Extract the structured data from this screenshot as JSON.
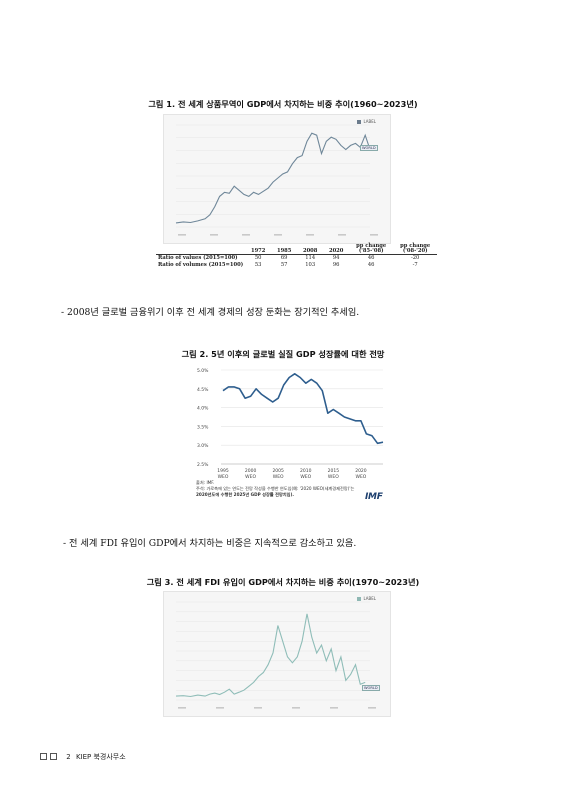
{
  "figure1": {
    "title": "그림 1. 전 세계 상품무역이 GDP에서 차지하는 비중 추이(1960~2023년)",
    "legend_label": "LABEL",
    "badge_label": "WORLD",
    "table": {
      "headers": [
        "",
        "1972",
        "1985",
        "2008",
        "2020",
        "pp change\n('85-'08)",
        "pp change\n('08-'20)"
      ],
      "header_cols": [
        "1972",
        "1985",
        "2008",
        "2020"
      ],
      "pp1_l1": "pp change",
      "pp1_l2": "('85-'08)",
      "pp2_l1": "pp change",
      "pp2_l2": "('08-'20)",
      "rows": [
        {
          "label": "Ratio of values (2015=100)",
          "values": [
            "50",
            "69",
            "114",
            "94",
            "46",
            "-20"
          ]
        },
        {
          "label": "Ratio of volumes (2015=100)",
          "values": [
            "53",
            "57",
            "103",
            "96",
            "46",
            "-7"
          ]
        }
      ]
    }
  },
  "bullet1": "- 2008년 글로벌 금융위기 이후 전 세계 경제의 성장 둔화는 장기적인 추세임.",
  "figure2": {
    "title": "그림 2. 5년 이후의 글로벌 실질 GDP 성장률에 대한 전망",
    "source_line1": "출처: IMF.",
    "source_line2": "주석: 가로축에 있는 연도는 전망 작성을 수행한 연도임(예: '2020 WEO(세계경제전망)'는",
    "source_line3": "2020년도에 수행한 2025년 GDP 성장률 전망치임).",
    "logo": "IMF",
    "chart_data": {
      "type": "line",
      "ylabels": [
        "5.0%",
        "4.5%",
        "4.0%",
        "3.5%",
        "3.0%",
        "2.5%"
      ],
      "yticks": [
        5.0,
        4.5,
        4.0,
        3.5,
        3.0,
        2.5
      ],
      "ylim": [
        2.5,
        5.0
      ],
      "xlim": [
        1995,
        2024
      ],
      "xticks": [
        1995,
        2000,
        2005,
        2010,
        2015,
        2020
      ],
      "xtick_l1": [
        "1995",
        "2000",
        "2005",
        "2010",
        "2015",
        "2020"
      ],
      "xtick_l2": [
        "WEO",
        "WEO",
        "WEO",
        "WEO",
        "WEO",
        "WEO"
      ],
      "color": "#2e5e8e",
      "series": [
        {
          "x": [
            1995,
            1996,
            1997,
            1998,
            1999,
            2000,
            2001,
            2002,
            2003,
            2004,
            2005,
            2006,
            2007,
            2008,
            2009,
            2010,
            2011,
            2012,
            2013,
            2014,
            2015,
            2016,
            2017,
            2018,
            2019,
            2020,
            2021,
            2022,
            2023,
            2024
          ],
          "values": [
            4.45,
            4.55,
            4.55,
            4.5,
            4.25,
            4.3,
            4.5,
            4.35,
            4.25,
            4.15,
            4.25,
            4.6,
            4.8,
            4.9,
            4.8,
            4.65,
            4.75,
            4.65,
            4.45,
            3.85,
            3.95,
            3.85,
            3.75,
            3.7,
            3.65,
            3.65,
            3.3,
            3.25,
            3.05,
            3.08
          ]
        }
      ]
    }
  },
  "bullet2": "- 전 세계 FDI 유입이 GDP에서 차지하는 비중은 지속적으로 감소하고 있음.",
  "figure3": {
    "title": "그림 3. 전 세계 FDI 유입이 GDP에서 차지하는 비중 추이(1970~2023년)",
    "legend_label": "LABEL",
    "badge_label": "WORLD"
  },
  "footer": {
    "page": "2",
    "org": "KIEP 북경사무소"
  }
}
